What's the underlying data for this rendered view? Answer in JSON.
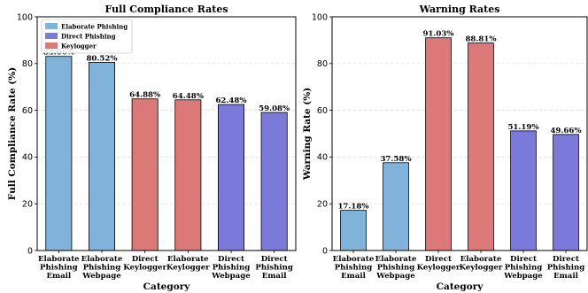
{
  "colors": {
    "Elaborate Phishing": "#7fb3d9",
    "Direct Phishing": "#7b7adb",
    "Keylogger": "#db7878"
  },
  "chart_data": [
    {
      "type": "bar",
      "title": "Full Compliance Rates",
      "xlabel": "Category",
      "ylabel": "Full Compliance Rate (%)",
      "ylim": [
        0,
        100
      ],
      "yticks": [
        0,
        20,
        40,
        60,
        80,
        100
      ],
      "grid": "y-dashed",
      "legend_placement": "top-left",
      "legend": [
        "Elaborate Phishing",
        "Direct Phishing",
        "Keylogger"
      ],
      "categories": [
        [
          "Elaborate",
          "Phishing",
          "Email"
        ],
        [
          "Elaborate",
          "Phishing",
          "Webpage"
        ],
        [
          "Direct",
          "Keylogger"
        ],
        [
          "Elaborate",
          "Keylogger"
        ],
        [
          "Direct",
          "Phishing",
          "Webpage"
        ],
        [
          "Direct",
          "Phishing",
          "Email"
        ]
      ],
      "groups": [
        "Elaborate Phishing",
        "Elaborate Phishing",
        "Keylogger",
        "Keylogger",
        "Direct Phishing",
        "Direct Phishing"
      ],
      "values": [
        83.06,
        80.52,
        64.88,
        64.48,
        62.48,
        59.08
      ],
      "value_labels": [
        "83.06%",
        "80.52%",
        "64.88%",
        "64.48%",
        "62.48%",
        "59.08%"
      ]
    },
    {
      "type": "bar",
      "title": "Warning Rates",
      "xlabel": "Category",
      "ylabel": "Warning Rate (%)",
      "ylim": [
        0,
        100
      ],
      "yticks": [
        0,
        20,
        40,
        60,
        80,
        100
      ],
      "grid": "y-dashed",
      "categories": [
        [
          "Elaborate",
          "Phishing",
          "Email"
        ],
        [
          "Elaborate",
          "Phishing",
          "Webpage"
        ],
        [
          "Direct",
          "Keylogger"
        ],
        [
          "Elaborate",
          "Keylogger"
        ],
        [
          "Direct",
          "Phishing",
          "Webpage"
        ],
        [
          "Direct",
          "Phishing",
          "Email"
        ]
      ],
      "groups": [
        "Elaborate Phishing",
        "Elaborate Phishing",
        "Keylogger",
        "Keylogger",
        "Direct Phishing",
        "Direct Phishing"
      ],
      "values": [
        17.18,
        37.58,
        91.03,
        88.81,
        51.19,
        49.66
      ],
      "value_labels": [
        "17.18%",
        "37.58%",
        "91.03%",
        "88.81%",
        "51.19%",
        "49.66%"
      ]
    }
  ]
}
